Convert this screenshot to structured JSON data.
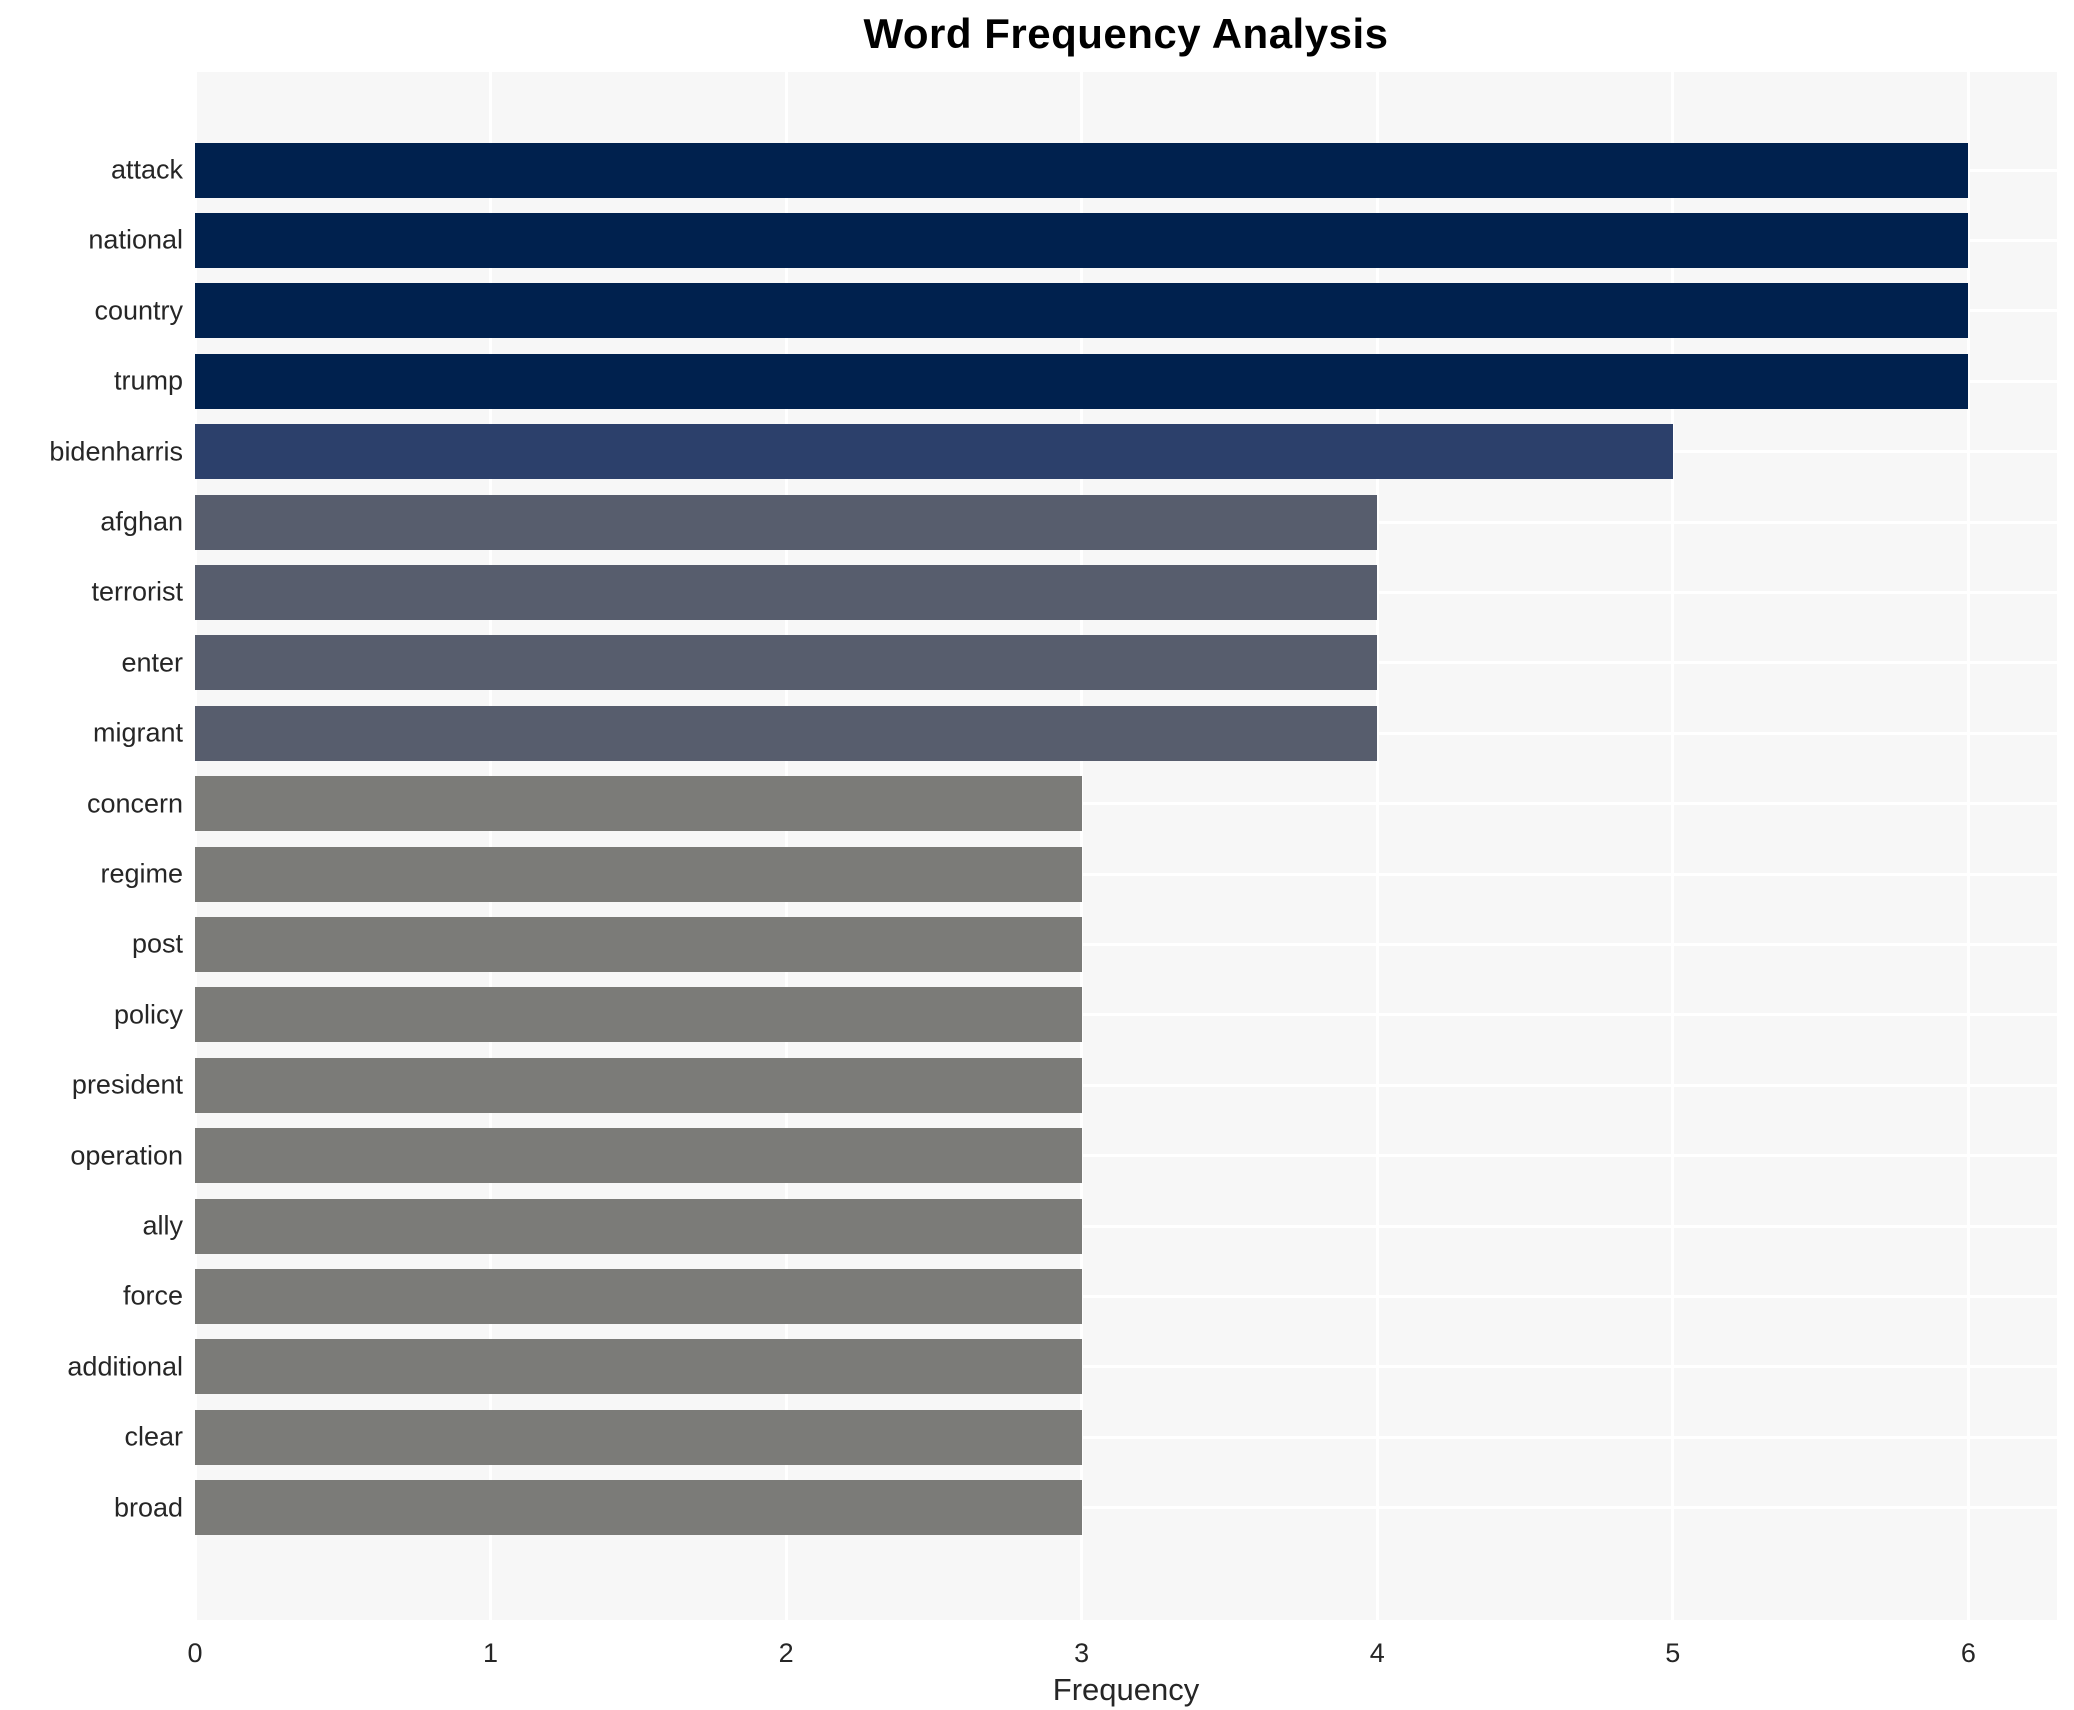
{
  "chart_data": {
    "type": "bar",
    "orientation": "horizontal",
    "title": "Word Frequency Analysis",
    "xlabel": "Frequency",
    "ylabel": "",
    "categories": [
      "attack",
      "national",
      "country",
      "trump",
      "bidenharris",
      "afghan",
      "terrorist",
      "enter",
      "migrant",
      "concern",
      "regime",
      "post",
      "policy",
      "president",
      "operation",
      "ally",
      "force",
      "additional",
      "clear",
      "broad"
    ],
    "values": [
      6,
      6,
      6,
      6,
      5,
      4,
      4,
      4,
      4,
      3,
      3,
      3,
      3,
      3,
      3,
      3,
      3,
      3,
      3,
      3
    ],
    "x_ticks": [
      0,
      1,
      2,
      3,
      4,
      5,
      6
    ],
    "xlim": [
      0,
      6.3
    ],
    "grid": true,
    "legend": "none",
    "color_by_value": {
      "6": "#00214e",
      "5": "#2c406b",
      "4": "#575d6d",
      "3": "#7b7b78"
    },
    "colors": {
      "plot_background": "#f7f7f7",
      "gridline": "#ffffff",
      "text": "#262626",
      "title_text": "#000000"
    }
  }
}
